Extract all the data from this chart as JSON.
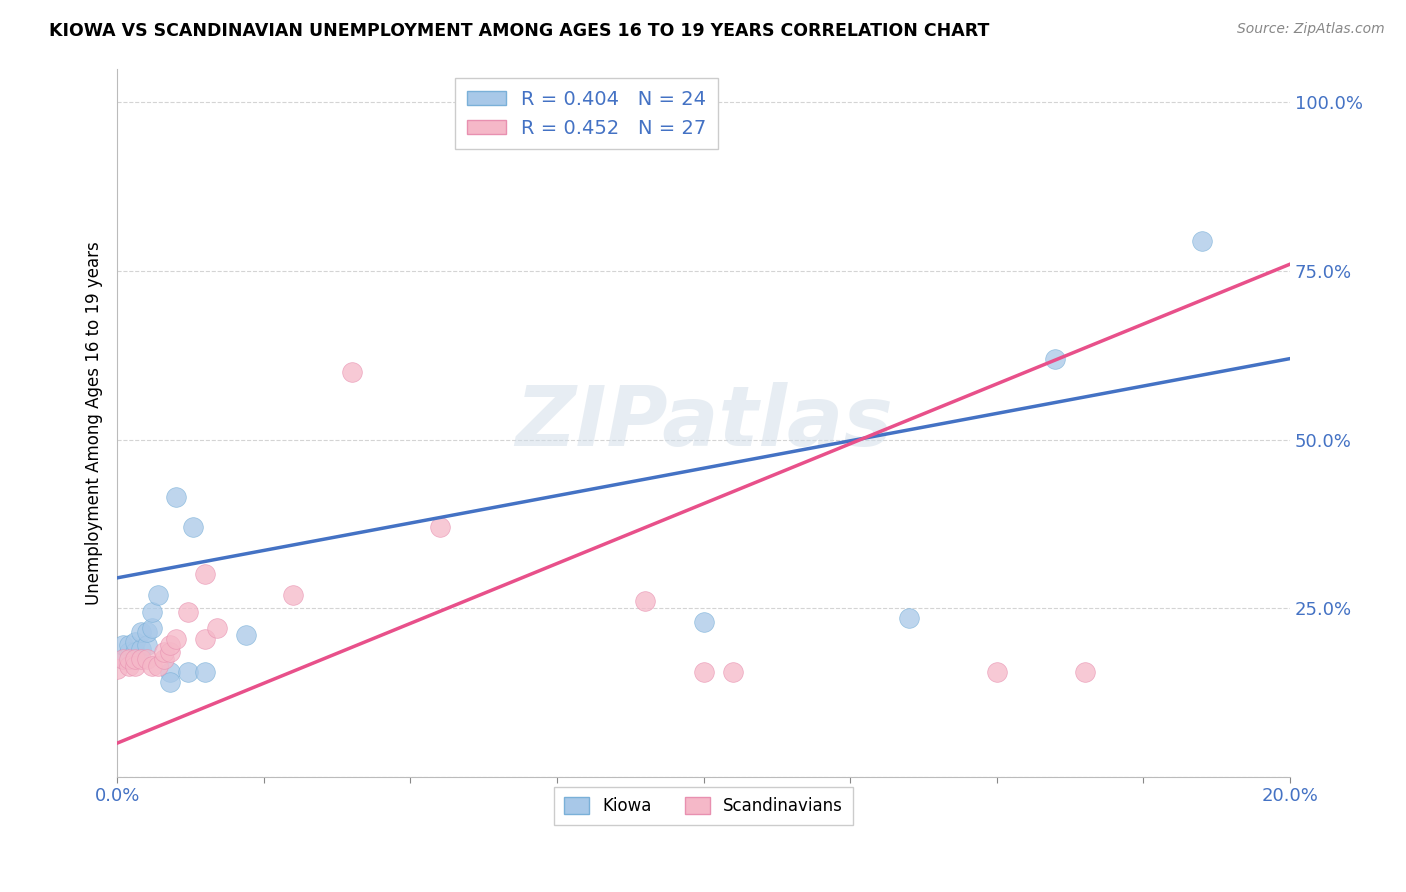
{
  "title": "KIOWA VS SCANDINAVIAN UNEMPLOYMENT AMONG AGES 16 TO 19 YEARS CORRELATION CHART",
  "source": "Source: ZipAtlas.com",
  "ylabel": "Unemployment Among Ages 16 to 19 years",
  "xlim": [
    0.0,
    0.2
  ],
  "ylim": [
    0.0,
    1.05
  ],
  "kiowa_color": "#a8c8e8",
  "scandinavian_color": "#f5b8c8",
  "kiowa_R": 0.404,
  "kiowa_N": 24,
  "scandinavian_R": 0.452,
  "scandinavian_N": 27,
  "watermark": "ZIPatlas",
  "kiowa_x": [
    0.001,
    0.001,
    0.002,
    0.002,
    0.003,
    0.003,
    0.004,
    0.004,
    0.005,
    0.005,
    0.006,
    0.006,
    0.007,
    0.009,
    0.009,
    0.01,
    0.012,
    0.013,
    0.015,
    0.022,
    0.1,
    0.135,
    0.16,
    0.185
  ],
  "kiowa_y": [
    0.175,
    0.195,
    0.185,
    0.195,
    0.185,
    0.2,
    0.19,
    0.215,
    0.195,
    0.215,
    0.22,
    0.245,
    0.27,
    0.155,
    0.14,
    0.415,
    0.155,
    0.37,
    0.155,
    0.21,
    0.23,
    0.235,
    0.62,
    0.795
  ],
  "scandinavian_x": [
    0.0,
    0.001,
    0.002,
    0.002,
    0.003,
    0.003,
    0.004,
    0.005,
    0.006,
    0.007,
    0.008,
    0.008,
    0.009,
    0.009,
    0.01,
    0.012,
    0.015,
    0.015,
    0.017,
    0.03,
    0.04,
    0.055,
    0.09,
    0.1,
    0.105,
    0.15,
    0.165
  ],
  "scandinavian_y": [
    0.16,
    0.175,
    0.165,
    0.175,
    0.165,
    0.175,
    0.175,
    0.175,
    0.165,
    0.165,
    0.175,
    0.185,
    0.185,
    0.195,
    0.205,
    0.245,
    0.205,
    0.3,
    0.22,
    0.27,
    0.6,
    0.37,
    0.26,
    0.155,
    0.155,
    0.155,
    0.155
  ],
  "kiowa_line_color": "#4472c4",
  "scandinavian_line_color": "#e8508a",
  "background_color": "#ffffff",
  "grid_color": "#d0d0d0",
  "kiowa_line_x0": 0.0,
  "kiowa_line_y0": 0.295,
  "kiowa_line_x1": 0.2,
  "kiowa_line_y1": 0.62,
  "scand_line_x0": 0.0,
  "scand_line_y0": 0.05,
  "scand_line_x1": 0.2,
  "scand_line_y1": 0.76
}
